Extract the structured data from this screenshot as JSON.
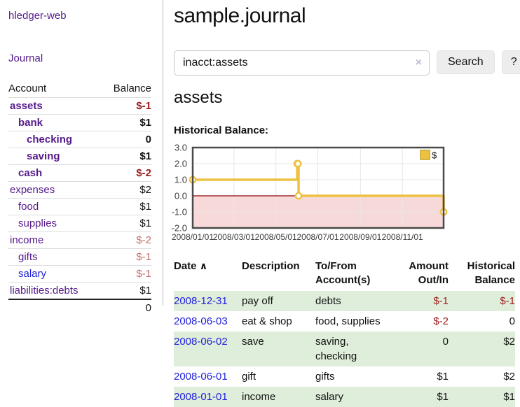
{
  "app": {
    "title": "hledger-web"
  },
  "sidebar": {
    "journal_link": "Journal",
    "accounts": {
      "col_account": "Account",
      "col_balance": "Balance",
      "rows": [
        {
          "account": "assets",
          "balance": "$-1",
          "indent": 1,
          "bold": true
        },
        {
          "account": "bank",
          "balance": "$1",
          "indent": 2,
          "bold": true
        },
        {
          "account": "checking",
          "balance": "0",
          "indent": 3,
          "bold": true
        },
        {
          "account": "saving",
          "balance": "$1",
          "indent": 3,
          "bold": true
        },
        {
          "account": "cash",
          "balance": "$-2",
          "indent": 2,
          "bold": true
        },
        {
          "account": "expenses",
          "balance": "$2",
          "indent": 1,
          "bold": false
        },
        {
          "account": "food",
          "balance": "$1",
          "indent": 2,
          "bold": false
        },
        {
          "account": "supplies",
          "balance": "$1",
          "indent": 2,
          "bold": false
        },
        {
          "account": "income",
          "balance": "$-2",
          "indent": 1,
          "bold": false
        },
        {
          "account": "gifts",
          "balance": "$-1",
          "indent": 2,
          "bold": false
        },
        {
          "account": "salary",
          "balance": "$-1",
          "indent": 2,
          "bold": false,
          "blue": true
        },
        {
          "account": "liabilities:debts",
          "balance": "$1",
          "indent": 1,
          "bold": false
        }
      ],
      "total": "0"
    }
  },
  "main": {
    "title": "sample.journal",
    "search": {
      "query": "inacct:assets",
      "clear_icon": "×",
      "button": "Search",
      "help": "?"
    },
    "register": {
      "heading": "assets",
      "chart_title": "Historical Balance:",
      "sort_icon": "∧",
      "columns": [
        "Date",
        "Description",
        "To/From Account(s)",
        "Amount Out/In",
        "Historical Balance"
      ],
      "rows": [
        {
          "date": "2008-12-31",
          "description": "pay off",
          "accounts": "debts",
          "amount": "$-1",
          "balance": "$-1"
        },
        {
          "date": "2008-06-03",
          "description": "eat & shop",
          "accounts": "food, supplies",
          "amount": "$-2",
          "balance": "0"
        },
        {
          "date": "2008-06-02",
          "description": "save",
          "accounts": "saving, checking",
          "amount": "0",
          "balance": "$2"
        },
        {
          "date": "2008-06-01",
          "description": "gift",
          "accounts": "gifts",
          "amount": "$1",
          "balance": "$2"
        },
        {
          "date": "2008-01-01",
          "description": "income",
          "accounts": "salary",
          "amount": "$1",
          "balance": "$1"
        }
      ]
    }
  },
  "chart_data": {
    "type": "line",
    "title": "Historical Balance:",
    "series": [
      {
        "name": "$",
        "color": "#edc240",
        "step": true,
        "points": [
          [
            "2008-01-01",
            1
          ],
          [
            "2008-06-01",
            2
          ],
          [
            "2008-06-02",
            2
          ],
          [
            "2008-06-03",
            0
          ],
          [
            "2008-12-31",
            -1
          ]
        ]
      }
    ],
    "ylim": [
      -2,
      3
    ],
    "yticks": [
      3,
      2,
      1,
      0,
      -1,
      -2
    ],
    "xticks": [
      "2008/01/01",
      "2008/03/01",
      "2008/05/01",
      "2008/07/01",
      "2008/09/01",
      "2008/11/01"
    ],
    "xrange": [
      "2008-01-01",
      "2008-12-31"
    ],
    "grid": true,
    "legend_position": "top-right",
    "colors": {
      "negative_fill": "#f8d9da",
      "zero_line": "#8b0000",
      "grid_line": "#e6e6e6",
      "border": "#4a4a4a",
      "tick_label": "#3c3c3c",
      "legend_border": "#c7a42d"
    }
  },
  "colors": {
    "accent_purple": "#551a8b",
    "link_blue": "#2121dd",
    "negative_strong": "#9c1c1c",
    "negative_soft": "#c56f6f",
    "row_green": "#dfeeda"
  }
}
